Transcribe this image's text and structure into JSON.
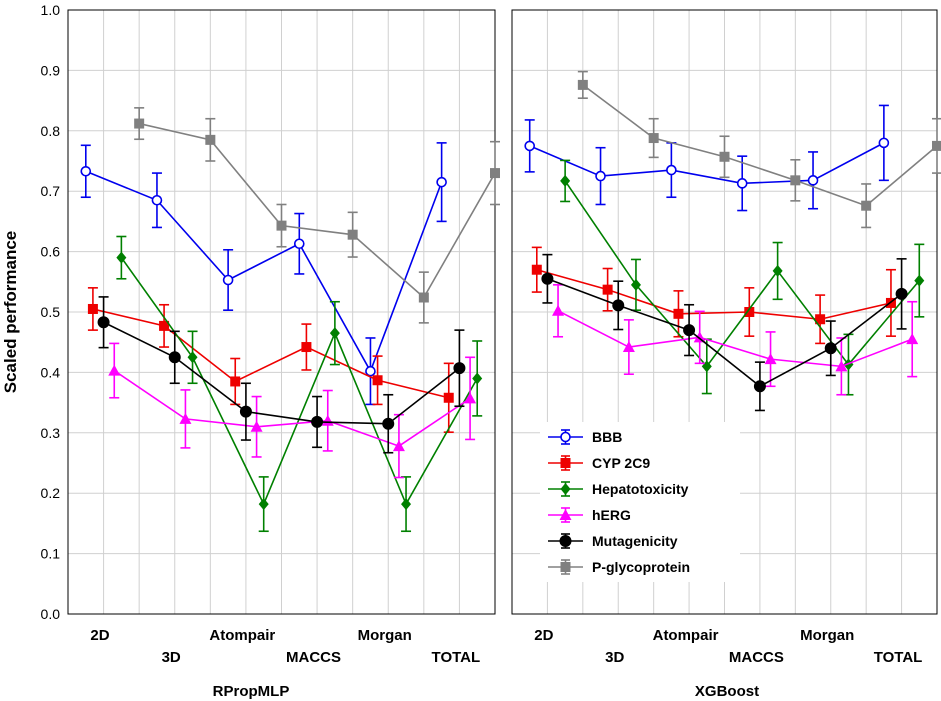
{
  "chart_data": {
    "type": "line",
    "ylabel": "Scaled performance",
    "ylim": [
      0.0,
      1.0
    ],
    "yticks": [
      "0.0",
      "0.1",
      "0.2",
      "0.3",
      "0.4",
      "0.5",
      "0.6",
      "0.7",
      "0.8",
      "0.9",
      "1.0"
    ],
    "grid": true,
    "categories": [
      "2D",
      "3D",
      "Atompair",
      "MACCS",
      "Morgan",
      "TOTAL"
    ],
    "legend_position": "bottom-left of right panel",
    "series_meta": [
      {
        "name": "BBB",
        "color": "#0000ee",
        "marker": "circle-open",
        "offset": -0.25
      },
      {
        "name": "CYP 2C9",
        "color": "#ee0000",
        "marker": "square",
        "offset": -0.15
      },
      {
        "name": "Hepatotoxicity",
        "color": "#008000",
        "marker": "diamond",
        "offset": 0.25
      },
      {
        "name": "hERG",
        "color": "#ff00ff",
        "marker": "triangle",
        "offset": 0.15
      },
      {
        "name": "Mutagenicity",
        "color": "#000000",
        "marker": "circle",
        "offset": 0.0
      },
      {
        "name": "P-glycoprotein",
        "color": "#808080",
        "marker": "square",
        "offset": 0.5
      }
    ],
    "panels": [
      {
        "title": "RPropMLP",
        "series": [
          {
            "name": "BBB",
            "values": [
              0.733,
              0.685,
              0.553,
              0.613,
              0.402,
              0.715
            ],
            "err": [
              0.043,
              0.045,
              0.05,
              0.05,
              0.055,
              0.065
            ]
          },
          {
            "name": "CYP 2C9",
            "values": [
              0.505,
              0.477,
              0.385,
              0.442,
              0.387,
              0.358
            ],
            "err": [
              0.035,
              0.035,
              0.038,
              0.038,
              0.04,
              0.057
            ]
          },
          {
            "name": "Hepatotoxicity",
            "values": [
              0.59,
              0.425,
              0.182,
              0.465,
              0.182,
              0.39
            ],
            "err": [
              0.035,
              0.043,
              0.045,
              0.052,
              0.045,
              0.062
            ]
          },
          {
            "name": "hERG",
            "values": [
              0.403,
              0.323,
              0.31,
              0.32,
              0.278,
              0.357
            ],
            "err": [
              0.045,
              0.048,
              0.05,
              0.05,
              0.052,
              0.068
            ]
          },
          {
            "name": "Mutagenicity",
            "values": [
              0.483,
              0.425,
              0.335,
              0.318,
              0.315,
              0.407
            ],
            "err": [
              0.042,
              0.043,
              0.047,
              0.042,
              0.048,
              0.063
            ]
          },
          {
            "name": "P-glycoprotein",
            "values": [
              0.812,
              0.785,
              0.643,
              0.628,
              0.524,
              0.73
            ],
            "err": [
              0.026,
              0.035,
              0.035,
              0.037,
              0.042,
              0.052
            ]
          }
        ]
      },
      {
        "title": "XGBoost",
        "series": [
          {
            "name": "BBB",
            "values": [
              0.775,
              0.725,
              0.735,
              0.713,
              0.718,
              0.78
            ],
            "err": [
              0.043,
              0.047,
              0.045,
              0.045,
              0.047,
              0.062
            ]
          },
          {
            "name": "CYP 2C9",
            "values": [
              0.57,
              0.537,
              0.497,
              0.5,
              0.488,
              0.515
            ],
            "err": [
              0.037,
              0.035,
              0.038,
              0.04,
              0.04,
              0.055
            ]
          },
          {
            "name": "Hepatotoxicity",
            "values": [
              0.717,
              0.545,
              0.41,
              0.568,
              0.413,
              0.552
            ],
            "err": [
              0.034,
              0.042,
              0.045,
              0.047,
              0.05,
              0.06
            ]
          },
          {
            "name": "hERG",
            "values": [
              0.502,
              0.442,
              0.458,
              0.422,
              0.41,
              0.455
            ],
            "err": [
              0.043,
              0.045,
              0.043,
              0.045,
              0.047,
              0.062
            ]
          },
          {
            "name": "Mutagenicity",
            "values": [
              0.555,
              0.511,
              0.47,
              0.377,
              0.44,
              0.53
            ],
            "err": [
              0.04,
              0.04,
              0.042,
              0.04,
              0.045,
              0.058
            ]
          },
          {
            "name": "P-glycoprotein",
            "values": [
              0.876,
              0.788,
              0.757,
              0.718,
              0.676,
              0.775
            ],
            "err": [
              0.022,
              0.032,
              0.034,
              0.034,
              0.036,
              0.045
            ]
          }
        ]
      }
    ]
  }
}
